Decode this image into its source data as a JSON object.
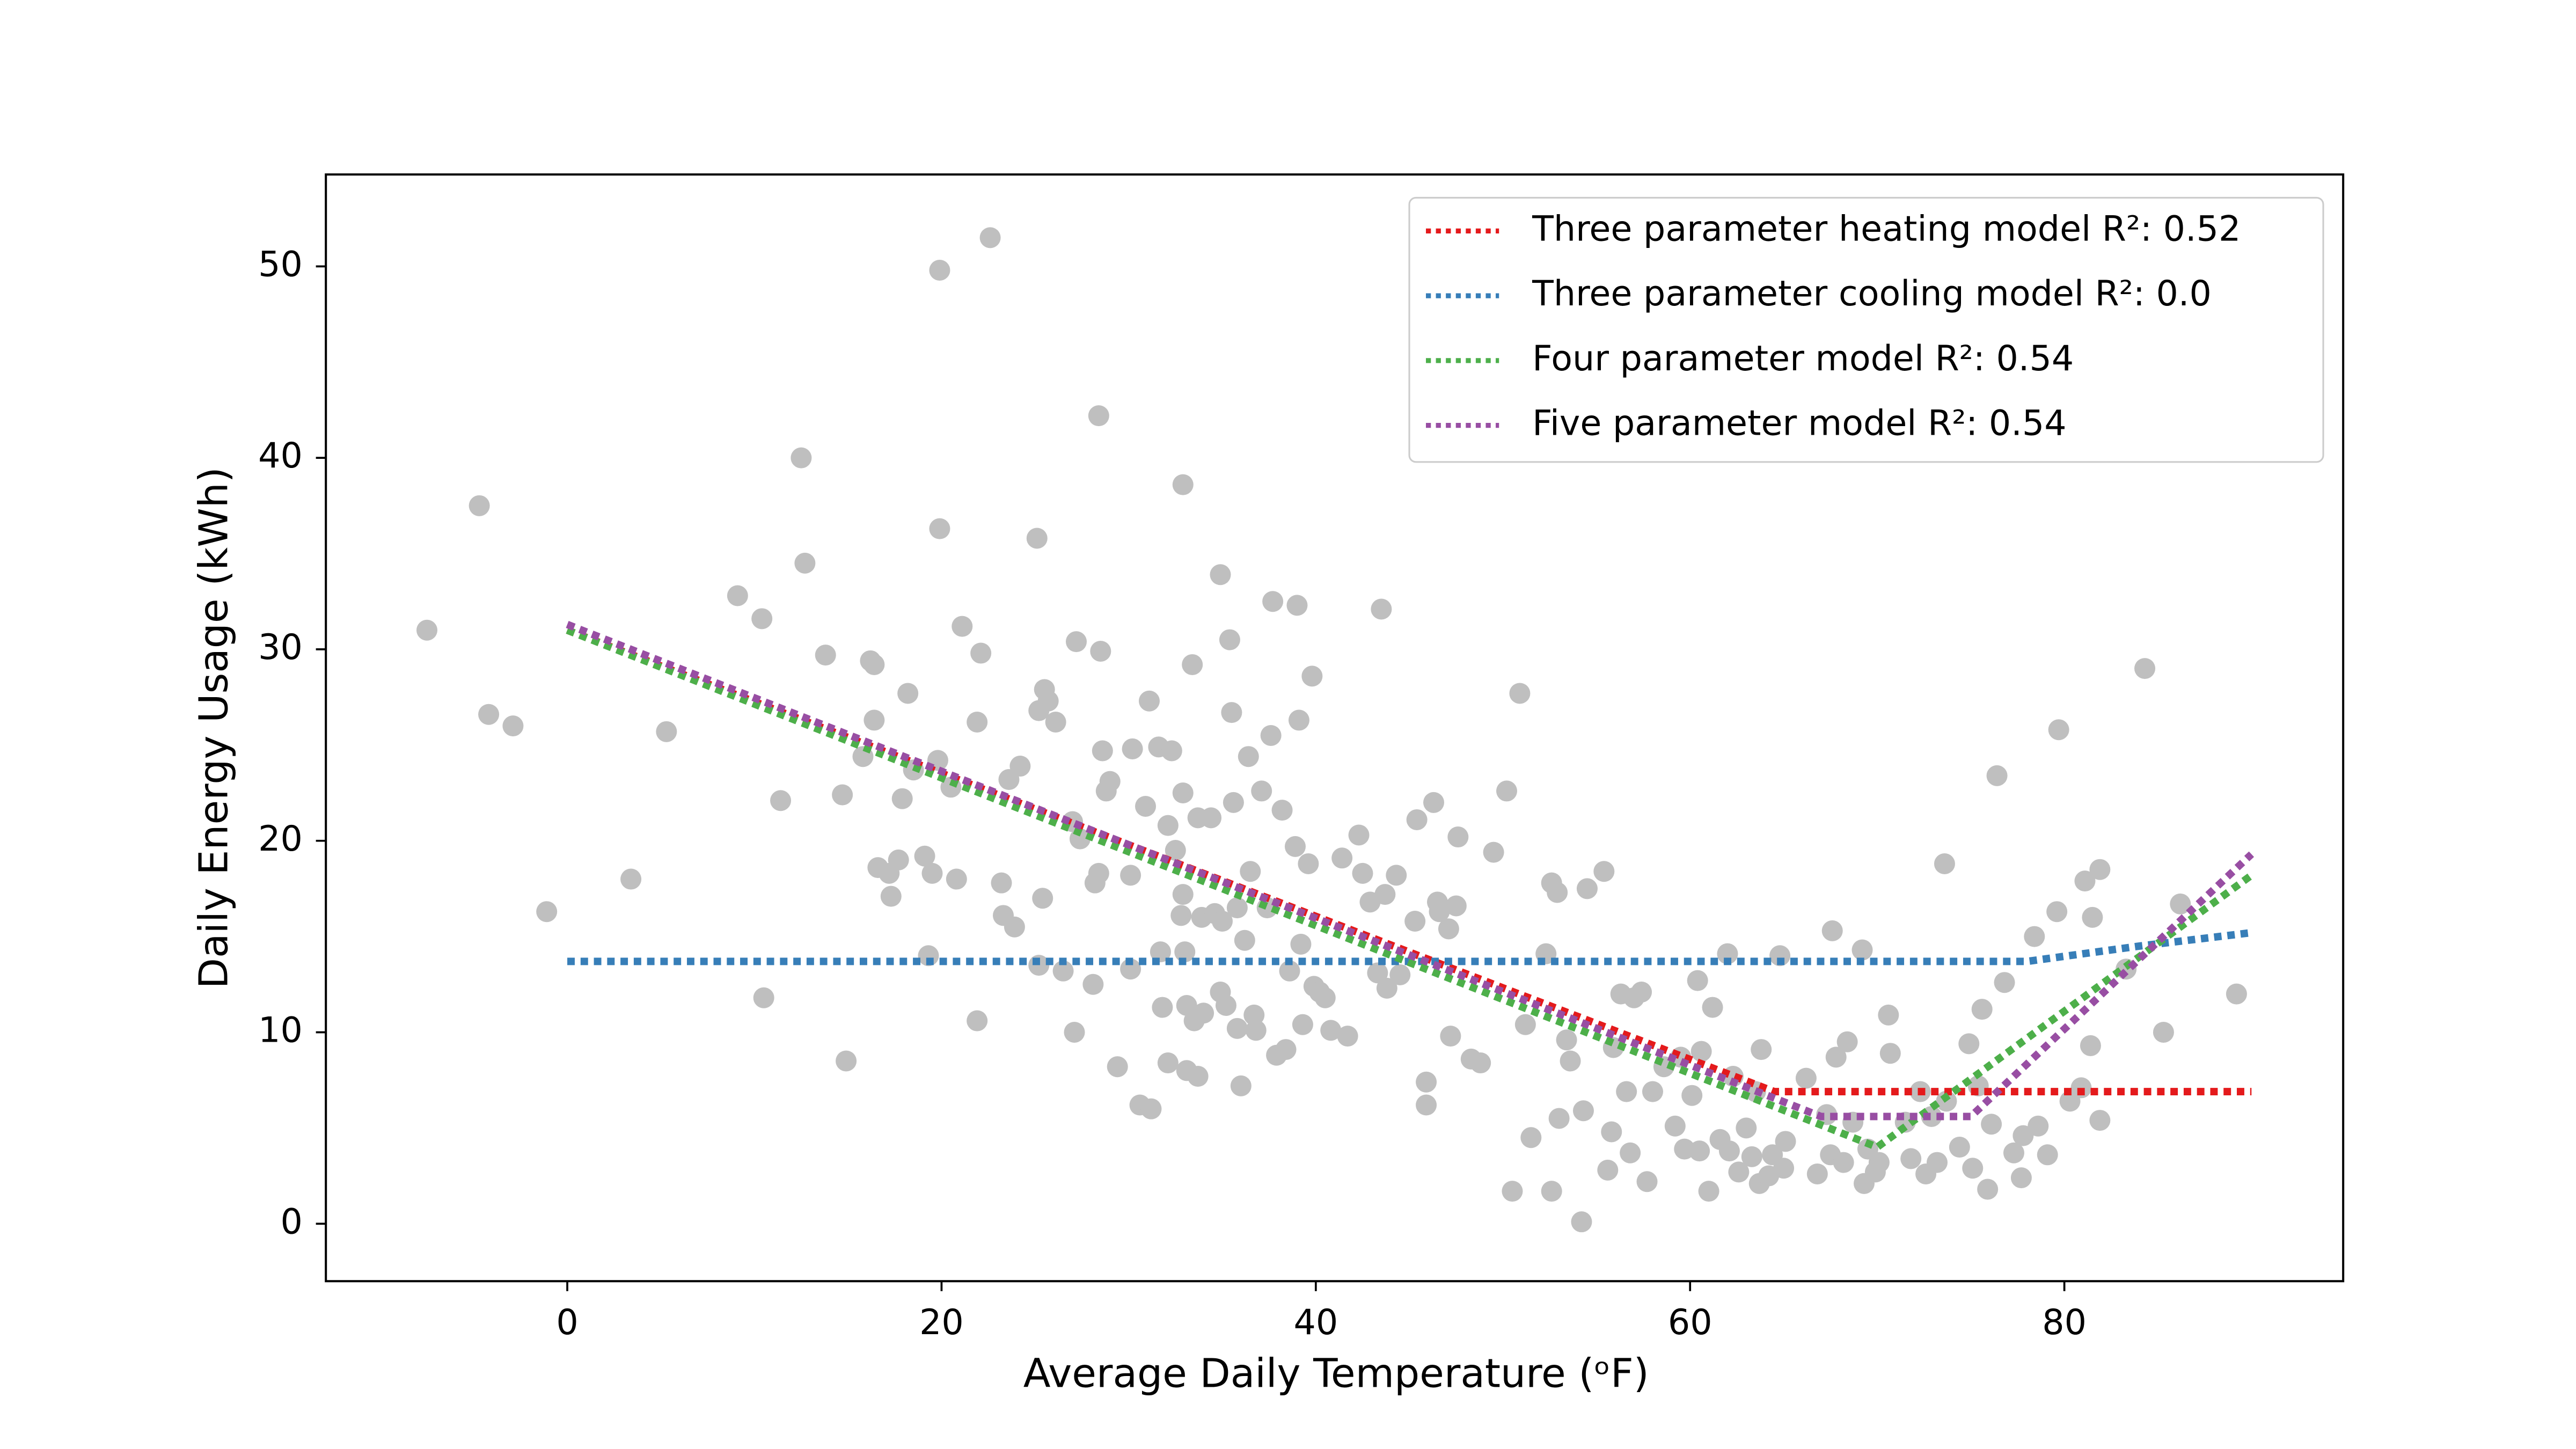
{
  "chart_data": {
    "type": "scatter",
    "xlabel": "Average Daily Temperature (ᵒF)",
    "ylabel": "Daily Energy Usage (kWh)",
    "xlim": [
      -12.9,
      94.9
    ],
    "ylim": [
      -3.0,
      54.8
    ],
    "xticks": [
      0,
      20,
      40,
      60,
      80
    ],
    "yticks": [
      0,
      10,
      20,
      30,
      40,
      50
    ],
    "legend": "upper right",
    "points": {
      "color": "#bfbfbf",
      "x": [
        -7.5,
        -4.7,
        -4.2,
        -2.9,
        -1.1,
        3.4,
        5.3,
        9.1,
        10.4,
        10.5,
        11.4,
        12.5,
        12.7,
        13.8,
        14.7,
        14.9,
        15.8,
        16.2,
        16.4,
        16.4,
        16.6,
        17.2,
        17.3,
        17.7,
        17.9,
        18.2,
        18.5,
        19.1,
        19.3,
        19.5,
        19.8,
        19.9,
        19.9,
        20.5,
        20.8,
        21.1,
        21.9,
        21.9,
        22.1,
        22.6,
        23.2,
        23.3,
        23.6,
        23.9,
        24.2,
        25.1,
        25.2,
        25.2,
        25.4,
        25.5,
        25.7,
        26.1,
        26.5,
        27.0,
        27.1,
        27.2,
        27.4,
        28.1,
        28.2,
        28.4,
        28.4,
        28.5,
        28.6,
        28.8,
        29,
        29.4,
        30.1,
        30.1,
        30.2,
        30.6,
        30.9,
        31.1,
        31.2,
        31.6,
        31.7,
        31.8,
        32.1,
        32.1,
        32.3,
        32.5,
        32.8,
        32.9,
        32.9,
        32.9,
        33,
        33.1,
        33.1,
        33.4,
        33.5,
        33.7,
        33.7,
        33.9,
        34,
        34.4,
        34.6,
        34.9,
        34.9,
        35,
        35.2,
        35.4,
        35.5,
        35.6,
        35.8,
        35.8,
        36,
        36.2,
        36.4,
        36.5,
        36.7,
        36.8,
        37.1,
        37.4,
        37.6,
        37.7,
        37.9,
        38.2,
        38.4,
        38.6,
        38.9,
        39,
        39.1,
        39.2,
        39.3,
        39.6,
        39.8,
        39.9,
        40.2,
        40.5,
        40.8,
        41.4,
        41.7,
        42.3,
        42.5,
        42.9,
        43.3,
        43.5,
        43.7,
        43.8,
        44.3,
        44.5,
        45.3,
        45.4,
        45.9,
        45.9,
        46.3,
        46.5,
        46.6,
        47.1,
        47.2,
        47.5,
        47.6,
        48.3,
        48.8,
        49.5,
        50.2,
        50.5,
        50.9,
        51.2,
        51.5,
        52.3,
        52.6,
        52.6,
        52.9,
        53,
        53.4,
        53.6,
        54.2,
        54.3,
        54.5,
        55.4,
        55.6,
        55.8,
        55.9,
        56.3,
        56.6,
        56.8,
        57,
        57.4,
        57.7,
        58,
        58.6,
        59.2,
        59.5,
        59.7,
        60.1,
        60.4,
        60.5,
        60.6,
        61,
        61.2,
        61.6,
        62,
        62.1,
        62.3,
        62.6,
        63,
        63.3,
        63.5,
        63.7,
        63.8,
        64.2,
        64.4,
        64.8,
        65,
        65.1,
        66.2,
        66.8,
        67.3,
        67.5,
        67.6,
        67.8,
        68.2,
        68.4,
        68.7,
        69.2,
        69.3,
        69.5,
        69.9,
        70.1,
        70.6,
        70.7,
        71.5,
        71.8,
        72.3,
        72.6,
        72.9,
        73.2,
        73.6,
        73.7,
        74.4,
        74.9,
        75.1,
        75.4,
        75.6,
        75.9,
        76.1,
        76.4,
        76.8,
        77.3,
        77.7,
        77.8,
        78.4,
        78.6,
        79.1,
        79.6,
        79.7,
        80.3,
        80.9,
        81.1,
        81.4,
        81.5,
        81.9,
        81.9,
        83.3,
        84.3,
        85.3,
        86.2,
        89.2
      ],
      "y": [
        31,
        37.5,
        26.6,
        26,
        16.3,
        18,
        25.7,
        32.8,
        31.6,
        11.8,
        22.1,
        40,
        34.5,
        29.7,
        22.4,
        8.5,
        24.4,
        29.4,
        29.2,
        26.3,
        18.6,
        18.3,
        17.1,
        19,
        22.2,
        27.7,
        23.7,
        19.2,
        14,
        18.3,
        24.2,
        36.3,
        49.8,
        22.8,
        18,
        31.2,
        26.2,
        10.6,
        29.8,
        51.5,
        17.8,
        16.1,
        23.2,
        15.5,
        23.9,
        35.8,
        13.5,
        26.8,
        17,
        27.9,
        27.3,
        26.2,
        13.2,
        21,
        10,
        30.4,
        20.1,
        12.5,
        17.8,
        42.2,
        18.3,
        29.9,
        24.7,
        22.6,
        23.1,
        8.2,
        18.2,
        13.3,
        24.8,
        6.2,
        21.8,
        27.3,
        6,
        24.9,
        14.2,
        11.3,
        20.8,
        8.4,
        24.7,
        19.5,
        16.1,
        38.6,
        22.5,
        17.2,
        14.2,
        11.4,
        8,
        29.2,
        10.6,
        21.2,
        7.7,
        16,
        11,
        21.2,
        16.2,
        33.9,
        12.1,
        15.8,
        11.4,
        30.5,
        26.7,
        22,
        10.2,
        16.5,
        7.2,
        14.8,
        24.4,
        18.4,
        10.9,
        10.1,
        22.6,
        16.5,
        25.5,
        32.5,
        8.8,
        21.6,
        9.1,
        13.2,
        19.7,
        32.3,
        26.3,
        14.6,
        10.4,
        18.8,
        28.6,
        12.4,
        12.1,
        11.8,
        10.1,
        19.1,
        9.8,
        20.3,
        18.3,
        16.8,
        13.1,
        32.1,
        17.2,
        12.3,
        18.2,
        13,
        15.8,
        21.1,
        7.4,
        6.2,
        22,
        16.8,
        16.3,
        15.4,
        9.8,
        16.6,
        20.2,
        8.6,
        8.4,
        19.4,
        22.6,
        1.7,
        27.7,
        10.4,
        4.5,
        14.1,
        17.8,
        1.7,
        17.3,
        5.5,
        9.6,
        8.5,
        0.1,
        5.9,
        17.5,
        18.4,
        2.8,
        4.8,
        9.2,
        12,
        6.9,
        3.7,
        11.8,
        12.1,
        2.2,
        6.9,
        8.2,
        5.1,
        8.7,
        3.9,
        6.7,
        12.7,
        3.8,
        9,
        1.7,
        11.3,
        4.4,
        14.1,
        3.8,
        7.7,
        2.7,
        5,
        3.5,
        6.9,
        2.1,
        9.1,
        2.5,
        3.6,
        14,
        2.9,
        4.3,
        7.6,
        2.6,
        5.7,
        3.6,
        15.3,
        8.7,
        3.2,
        9.5,
        5.3,
        14.3,
        2.1,
        3.9,
        2.7,
        3.2,
        10.9,
        8.9,
        5.3,
        3.4,
        6.9,
        2.6,
        5.6,
        3.2,
        18.8,
        6.4,
        4,
        9.4,
        2.9,
        7.2,
        11.2,
        1.8,
        5.2,
        23.4,
        12.6,
        3.7,
        2.4,
        4.6,
        15,
        5.1,
        3.6,
        16.3,
        25.8,
        6.4,
        7.1,
        17.9,
        9.3,
        16,
        5.4,
        18.5,
        13.3,
        29,
        10,
        16.7,
        12
      ]
    },
    "series": [
      {
        "name": "Three parameter heating model R²: 0.52",
        "type": "line",
        "color": "#e41a1c",
        "x": [
          0,
          64.5,
          90
        ],
        "y": [
          31.0,
          6.9,
          6.9
        ]
      },
      {
        "name": "Three parameter cooling model R²: 0.0",
        "type": "line",
        "color": "#377eb8",
        "x": [
          0,
          78,
          84,
          90
        ],
        "y": [
          13.7,
          13.7,
          14.5,
          15.2
        ]
      },
      {
        "name": "Four parameter model R²: 0.54",
        "type": "line",
        "color": "#4daf4a",
        "x": [
          0,
          70,
          90
        ],
        "y": [
          31.0,
          4.0,
          18.2
        ]
      },
      {
        "name": "Five parameter model R²: 0.54",
        "type": "line",
        "color": "#984ea3",
        "x": [
          0,
          67,
          75,
          90
        ],
        "y": [
          31.3,
          5.6,
          5.6,
          19.3
        ]
      }
    ]
  }
}
